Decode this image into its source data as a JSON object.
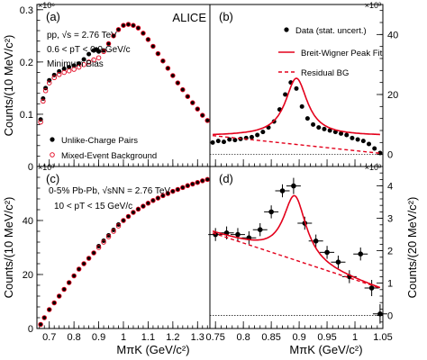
{
  "chart_data": [
    {
      "id": "a",
      "type": "scatter",
      "panel_label": "(a)",
      "experiment": "ALICE",
      "annotations": [
        "pp, √s = 2.76 TeV",
        "0.6 < pT < 0.9 GeV/c",
        "Minimum Bias"
      ],
      "scale_label": "×10⁶",
      "xlim": [
        0.65,
        1.35
      ],
      "ylim": [
        0,
        0.31
      ],
      "yticks": [
        0,
        0.1,
        0.2,
        0.3
      ],
      "yticklabels": [
        "0",
        "0.1",
        "0.2",
        "0.3"
      ],
      "ylabel": "Counts/(10 MeV/c²)",
      "legend": [
        "Unlike-Charge Pairs",
        "Mixed-Event Background"
      ],
      "series": [
        {
          "name": "Unlike-Charge Pairs",
          "marker": "filled-circle",
          "x": [
            0.665,
            0.675,
            0.685,
            0.7,
            0.72,
            0.74,
            0.76,
            0.78,
            0.8,
            0.82,
            0.84,
            0.86,
            0.88,
            0.89,
            0.9,
            0.92,
            0.94,
            0.96,
            0.98,
            1.0,
            1.02,
            1.04,
            1.06,
            1.08,
            1.1,
            1.12,
            1.14,
            1.16,
            1.18,
            1.2,
            1.22,
            1.24,
            1.26,
            1.28,
            1.3,
            1.32,
            1.34
          ],
          "y": [
            0.09,
            0.13,
            0.15,
            0.165,
            0.175,
            0.182,
            0.187,
            0.19,
            0.193,
            0.197,
            0.205,
            0.215,
            0.222,
            0.224,
            0.22,
            0.222,
            0.235,
            0.25,
            0.262,
            0.27,
            0.272,
            0.27,
            0.265,
            0.255,
            0.243,
            0.23,
            0.216,
            0.202,
            0.188,
            0.174,
            0.16,
            0.147,
            0.134,
            0.122,
            0.11,
            0.098,
            0.088
          ]
        },
        {
          "name": "Mixed-Event Background",
          "marker": "open-circle",
          "x": [
            0.665,
            0.675,
            0.685,
            0.7,
            0.72,
            0.74,
            0.76,
            0.78,
            0.8,
            0.82,
            0.84,
            0.86,
            0.88,
            0.9,
            0.92,
            0.94,
            0.96,
            0.98,
            1.0,
            1.02,
            1.04,
            1.06,
            1.08,
            1.1,
            1.12,
            1.14,
            1.16,
            1.18,
            1.2,
            1.22,
            1.24,
            1.26,
            1.28,
            1.3,
            1.32,
            1.34
          ],
          "y": [
            0.085,
            0.125,
            0.145,
            0.16,
            0.17,
            0.176,
            0.18,
            0.183,
            0.186,
            0.19,
            0.195,
            0.2,
            0.204,
            0.208,
            0.22,
            0.235,
            0.25,
            0.262,
            0.27,
            0.272,
            0.27,
            0.265,
            0.255,
            0.243,
            0.23,
            0.216,
            0.202,
            0.188,
            0.174,
            0.16,
            0.147,
            0.134,
            0.122,
            0.11,
            0.098,
            0.088
          ]
        }
      ]
    },
    {
      "id": "b",
      "type": "scatter",
      "panel_label": "(b)",
      "scale_label": "×10³",
      "xlim": [
        0.74,
        1.05
      ],
      "ylim": [
        -4,
        50
      ],
      "yticks": [
        0,
        20,
        40
      ],
      "yticklabels": [
        "0",
        "20",
        "40"
      ],
      "legend": [
        "Data (stat. uncert.)",
        "Breit-Wigner Peak Fit",
        "Residual BG"
      ],
      "series": [
        {
          "name": "Data (stat. uncert.)",
          "marker": "filled-circle",
          "x": [
            0.745,
            0.755,
            0.765,
            0.775,
            0.785,
            0.795,
            0.805,
            0.815,
            0.825,
            0.835,
            0.845,
            0.855,
            0.865,
            0.875,
            0.885,
            0.895,
            0.905,
            0.915,
            0.925,
            0.935,
            0.945,
            0.955,
            0.965,
            0.975,
            0.985,
            0.995,
            1.005,
            1.015,
            1.025,
            1.035,
            1.045
          ],
          "y": [
            4,
            4.5,
            4.2,
            5,
            4.8,
            5.2,
            5.5,
            5.8,
            6.5,
            7.5,
            9,
            11,
            15,
            20,
            24,
            22,
            16,
            12,
            10,
            9,
            8.5,
            8,
            7.5,
            7,
            6.5,
            5.5,
            5,
            4.5,
            3.5,
            2,
            0.5
          ]
        },
        {
          "name": "Breit-Wigner Peak Fit",
          "type": "line",
          "params": {
            "mass": 0.895,
            "width": 0.048,
            "amplitude": 19.2,
            "bg_start": 6.2,
            "bg_slope": 0.0
          }
        },
        {
          "name": "Residual BG",
          "type": "line",
          "x": [
            0.745,
            1.045
          ],
          "y": [
            6.3,
            0.4
          ]
        }
      ],
      "reference_line_y": 0
    },
    {
      "id": "c",
      "type": "scatter",
      "panel_label": "(c)",
      "annotations": [
        "0-5% Pb-Pb, √sNN = 2.76 TeV",
        "10 < pT < 15 GeV/c"
      ],
      "scale_label": "×10³",
      "xlim": [
        0.65,
        1.35
      ],
      "ylim": [
        0,
        60
      ],
      "yticks": [
        0,
        20,
        40
      ],
      "yticklabels": [
        "0",
        "20",
        "40"
      ],
      "xticks": [
        0.7,
        0.8,
        0.9,
        1.0,
        1.1,
        1.2,
        1.3
      ],
      "xticklabels": [
        "0.7",
        "0.8",
        "0.9",
        "1",
        "1.1",
        "1.2",
        "1.3"
      ],
      "ylabel": "Counts/(10 MeV/c²)",
      "xlabel": "MπK (GeV/c²)",
      "series": [
        {
          "name": "Unlike-Charge Pairs",
          "marker": "filled-circle",
          "x": [
            0.665,
            0.68,
            0.7,
            0.72,
            0.74,
            0.76,
            0.78,
            0.8,
            0.82,
            0.84,
            0.86,
            0.88,
            0.9,
            0.92,
            0.94,
            0.96,
            0.98,
            1.0,
            1.02,
            1.04,
            1.06,
            1.08,
            1.1,
            1.12,
            1.14,
            1.16,
            1.18,
            1.2,
            1.22,
            1.24,
            1.26,
            1.28,
            1.3,
            1.32,
            1.34
          ],
          "y": [
            1.5,
            4,
            7,
            9.5,
            12,
            14.5,
            17,
            19.5,
            22,
            24,
            26,
            28,
            30.5,
            32.5,
            34.5,
            36.5,
            38.5,
            40,
            41.5,
            43,
            44.2,
            45.3,
            46.4,
            47.4,
            48.3,
            49.2,
            50,
            50.8,
            51.5,
            52.2,
            52.9,
            53.5,
            54.1,
            54.7,
            55.2
          ]
        },
        {
          "name": "Mixed-Event Background",
          "marker": "open-circle",
          "x": [
            0.665,
            0.68,
            0.7,
            0.72,
            0.74,
            0.76,
            0.78,
            0.8,
            0.82,
            0.84,
            0.86,
            0.88,
            0.9,
            0.92,
            0.94,
            0.96,
            0.98,
            1.0,
            1.02,
            1.04,
            1.06,
            1.08,
            1.1,
            1.12,
            1.14,
            1.16,
            1.18,
            1.2,
            1.22,
            1.24,
            1.26,
            1.28,
            1.3,
            1.32,
            1.34
          ],
          "y": [
            1.5,
            4,
            7,
            9.5,
            12,
            14.5,
            17,
            19.5,
            22,
            24,
            26,
            28,
            30,
            32,
            34,
            36,
            38,
            40,
            41.5,
            43,
            44.2,
            45.3,
            46.4,
            47.4,
            48.3,
            49.2,
            50,
            50.8,
            51.5,
            52.2,
            52.9,
            53.5,
            54.1,
            54.7,
            55.2
          ]
        }
      ]
    },
    {
      "id": "d",
      "type": "scatter",
      "panel_label": "(d)",
      "scale_label": "×10³",
      "xlim": [
        0.74,
        1.05
      ],
      "ylim": [
        -0.4,
        4.6
      ],
      "yticks": [
        0,
        1,
        2,
        3,
        4
      ],
      "yticklabels": [
        "0",
        "1",
        "2",
        "3",
        "4"
      ],
      "ylabel_right": "Counts/(20 MeV/c²)",
      "xticks": [
        0.75,
        0.8,
        0.85,
        0.9,
        0.95,
        1.0,
        1.05
      ],
      "xticklabels": [
        "0.75",
        "0.8",
        "0.85",
        "0.9",
        "0.95",
        "1",
        "1.05"
      ],
      "xlabel": "MπK (GeV/c²)",
      "series": [
        {
          "name": "Data (stat. uncert.)",
          "marker": "filled-circle",
          "x": [
            0.75,
            0.77,
            0.79,
            0.81,
            0.83,
            0.85,
            0.87,
            0.89,
            0.91,
            0.93,
            0.95,
            0.97,
            0.99,
            1.01,
            1.03,
            1.045
          ],
          "y": [
            2.5,
            2.55,
            2.5,
            2.4,
            2.65,
            3.2,
            3.85,
            4.0,
            2.85,
            2.3,
            1.95,
            1.65,
            1.2,
            1.9,
            0.85,
            0.05
          ],
          "yerr": [
            0.2,
            0.2,
            0.2,
            0.2,
            0.2,
            0.2,
            0.2,
            0.25,
            0.2,
            0.2,
            0.2,
            0.2,
            0.2,
            0.2,
            0.25,
            0.3
          ]
        },
        {
          "name": "Breit-Wigner Peak Fit",
          "type": "line",
          "params": {
            "mass": 0.892,
            "width": 0.05,
            "amplitude": 2.0,
            "bg_start": 2.55,
            "bg_slope": -5.8
          }
        },
        {
          "name": "Residual BG",
          "type": "line",
          "x": [
            0.745,
            1.045
          ],
          "y": [
            2.55,
            0.85
          ]
        }
      ],
      "reference_line_y": 0
    }
  ],
  "colors": {
    "fit": "#e3001b",
    "data": "#000000",
    "background_marker": "#e3001b"
  }
}
